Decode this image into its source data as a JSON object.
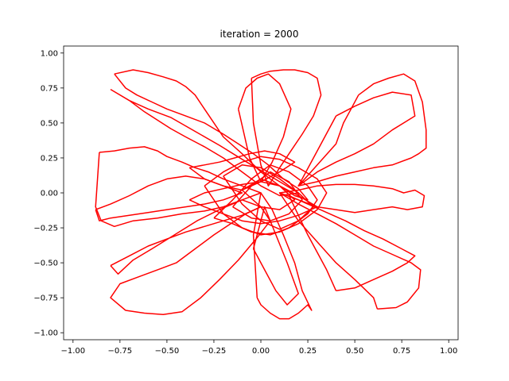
{
  "chart_data": {
    "type": "line",
    "title": "iteration = 2000",
    "xlabel": "",
    "ylabel": "",
    "xlim": [
      -1.05,
      1.05
    ],
    "ylim": [
      -1.05,
      1.05
    ],
    "xticks": [
      -1.0,
      -0.75,
      -0.5,
      -0.25,
      0.0,
      0.25,
      0.5,
      0.75,
      1.0
    ],
    "xtick_labels": [
      "−1.00",
      "−0.75",
      "−0.50",
      "−0.25",
      "0.00",
      "0.25",
      "0.50",
      "0.75",
      "1.00"
    ],
    "yticks": [
      1.0,
      0.75,
      0.5,
      0.25,
      0.0,
      -0.25,
      -0.5,
      -0.75,
      -1.0
    ],
    "ytick_labels": [
      "1.00",
      "0.75",
      "0.50",
      "0.25",
      "0.00",
      "−0.25",
      "−0.50",
      "−0.75",
      "−1.00"
    ],
    "grid": false,
    "legend": "none",
    "line_color": "#ff0000",
    "series": [
      {
        "x": [
          -0.78,
          -0.68,
          -0.6,
          -0.52,
          -0.45,
          -0.4,
          -0.35,
          -0.3,
          -0.25,
          -0.2,
          -0.1,
          0.0,
          0.1,
          0.18,
          0.25,
          0.2,
          0.12,
          0.04,
          -0.04,
          -0.12,
          -0.2,
          -0.3,
          -0.4,
          -0.5,
          -0.58,
          -0.66,
          -0.72,
          -0.78
        ],
        "y": [
          0.85,
          0.88,
          0.86,
          0.83,
          0.8,
          0.76,
          0.7,
          0.6,
          0.5,
          0.4,
          0.28,
          0.15,
          0.05,
          -0.02,
          -0.05,
          0.03,
          0.1,
          0.2,
          0.28,
          0.35,
          0.42,
          0.5,
          0.55,
          0.6,
          0.65,
          0.7,
          0.75,
          0.85
        ]
      },
      {
        "x": [
          -0.8,
          -0.7,
          -0.62,
          -0.55,
          -0.48,
          -0.4,
          -0.3,
          -0.2,
          -0.1,
          0.0,
          0.1,
          0.2,
          0.1,
          0.0,
          -0.1,
          -0.22,
          -0.35,
          -0.48,
          -0.6,
          -0.7,
          -0.8
        ],
        "y": [
          0.74,
          0.66,
          0.58,
          0.52,
          0.46,
          0.4,
          0.33,
          0.25,
          0.15,
          0.05,
          -0.02,
          0.0,
          0.08,
          0.16,
          0.24,
          0.34,
          0.44,
          0.54,
          0.6,
          0.66,
          0.74
        ]
      },
      {
        "x": [
          -0.86,
          -0.78,
          -0.7,
          -0.62,
          -0.55,
          -0.5,
          -0.42,
          -0.35,
          -0.28,
          -0.2,
          -0.1,
          0.0,
          -0.1,
          -0.2,
          -0.3,
          -0.42,
          -0.55,
          -0.68,
          -0.78,
          -0.85,
          -0.88,
          -0.86
        ],
        "y": [
          0.29,
          0.3,
          0.32,
          0.33,
          0.3,
          0.26,
          0.22,
          0.18,
          0.15,
          0.1,
          0.05,
          0.0,
          -0.05,
          -0.1,
          -0.13,
          -0.15,
          -0.18,
          -0.2,
          -0.24,
          -0.2,
          -0.1,
          0.29
        ]
      },
      {
        "x": [
          -0.88,
          -0.8,
          -0.7,
          -0.6,
          -0.5,
          -0.4,
          -0.3,
          -0.2,
          -0.1,
          -0.2,
          -0.3,
          -0.4,
          -0.5,
          -0.6,
          -0.7,
          -0.8,
          -0.86,
          -0.88
        ],
        "y": [
          -0.12,
          -0.08,
          -0.02,
          0.05,
          0.1,
          0.12,
          0.1,
          0.05,
          0.0,
          -0.05,
          -0.08,
          -0.1,
          -0.12,
          -0.14,
          -0.16,
          -0.18,
          -0.2,
          -0.12
        ]
      },
      {
        "x": [
          -0.72,
          -0.62,
          -0.52,
          -0.42,
          -0.32,
          -0.22,
          -0.12,
          -0.02,
          0.05,
          0.0,
          -0.08,
          -0.16,
          -0.25,
          -0.35,
          -0.45,
          -0.55,
          -0.65,
          -0.75,
          -0.8,
          -0.72
        ],
        "y": [
          -0.84,
          -0.86,
          -0.87,
          -0.85,
          -0.75,
          -0.62,
          -0.48,
          -0.32,
          -0.2,
          -0.1,
          -0.15,
          -0.22,
          -0.3,
          -0.4,
          -0.5,
          -0.55,
          -0.6,
          -0.65,
          -0.75,
          -0.84
        ]
      },
      {
        "x": [
          -0.8,
          -0.7,
          -0.6,
          -0.5,
          -0.4,
          -0.3,
          -0.2,
          -0.1,
          0.0,
          -0.1,
          -0.22,
          -0.34,
          -0.46,
          -0.58,
          -0.68,
          -0.76,
          -0.8
        ],
        "y": [
          -0.52,
          -0.45,
          -0.38,
          -0.33,
          -0.28,
          -0.24,
          -0.2,
          -0.16,
          -0.1,
          -0.05,
          -0.12,
          -0.2,
          -0.3,
          -0.4,
          -0.48,
          -0.58,
          -0.52
        ]
      },
      {
        "x": [
          -0.02,
          0.0,
          0.05,
          0.1,
          0.15,
          0.2,
          0.25,
          0.27,
          0.22,
          0.18,
          0.12,
          0.06,
          0.0,
          -0.04,
          -0.02
        ],
        "y": [
          -0.75,
          -0.8,
          -0.86,
          -0.9,
          -0.9,
          -0.86,
          -0.8,
          -0.84,
          -0.7,
          -0.5,
          -0.3,
          -0.12,
          0.0,
          -0.3,
          -0.75
        ]
      },
      {
        "x": [
          -0.04,
          0.02,
          0.08,
          0.14,
          0.2,
          0.14,
          0.08,
          0.02,
          -0.04
        ],
        "y": [
          -0.4,
          -0.55,
          -0.7,
          -0.8,
          -0.72,
          -0.5,
          -0.3,
          -0.1,
          -0.4
        ]
      },
      {
        "x": [
          0.62,
          0.72,
          0.78,
          0.84,
          0.85,
          0.8,
          0.7,
          0.6,
          0.5,
          0.4,
          0.3,
          0.2,
          0.1,
          0.2,
          0.3,
          0.4,
          0.5,
          0.6,
          0.62
        ],
        "y": [
          -0.83,
          -0.82,
          -0.78,
          -0.68,
          -0.55,
          -0.5,
          -0.44,
          -0.38,
          -0.3,
          -0.22,
          -0.15,
          -0.08,
          0.0,
          -0.2,
          -0.35,
          -0.5,
          -0.62,
          -0.75,
          -0.83
        ]
      },
      {
        "x": [
          0.4,
          0.5,
          0.6,
          0.7,
          0.78,
          0.82,
          0.75,
          0.65,
          0.55,
          0.45,
          0.35,
          0.25,
          0.15,
          0.25,
          0.35,
          0.4
        ],
        "y": [
          -0.7,
          -0.68,
          -0.62,
          -0.56,
          -0.5,
          -0.45,
          -0.4,
          -0.33,
          -0.27,
          -0.2,
          -0.14,
          -0.08,
          -0.02,
          -0.3,
          -0.55,
          -0.7
        ]
      },
      {
        "x": [
          0.4,
          0.5,
          0.6,
          0.7,
          0.78,
          0.86,
          0.87,
          0.82,
          0.76,
          0.7,
          0.6,
          0.5,
          0.4,
          0.3,
          0.2,
          0.1,
          0.2,
          0.3,
          0.4
        ],
        "y": [
          -0.12,
          -0.14,
          -0.12,
          -0.1,
          -0.12,
          -0.1,
          -0.02,
          0.02,
          0.0,
          0.03,
          0.05,
          0.06,
          0.06,
          0.05,
          0.02,
          0.0,
          -0.05,
          -0.1,
          -0.12
        ]
      },
      {
        "x": [
          0.52,
          0.6,
          0.68,
          0.76,
          0.82,
          0.86,
          0.88,
          0.88,
          0.84,
          0.8,
          0.7,
          0.6,
          0.5,
          0.4,
          0.3,
          0.2,
          0.3,
          0.4,
          0.44,
          0.48,
          0.52
        ],
        "y": [
          0.7,
          0.78,
          0.82,
          0.85,
          0.8,
          0.65,
          0.45,
          0.32,
          0.28,
          0.25,
          0.2,
          0.18,
          0.15,
          0.12,
          0.08,
          0.05,
          0.2,
          0.35,
          0.5,
          0.6,
          0.7
        ]
      },
      {
        "x": [
          0.4,
          0.5,
          0.6,
          0.7,
          0.8,
          0.82,
          0.7,
          0.6,
          0.5,
          0.4,
          0.3,
          0.2,
          0.3,
          0.4
        ],
        "y": [
          0.55,
          0.62,
          0.68,
          0.72,
          0.7,
          0.55,
          0.45,
          0.35,
          0.28,
          0.22,
          0.15,
          0.05,
          0.3,
          0.55
        ]
      },
      {
        "x": [
          -0.05,
          0.0,
          0.05,
          0.12,
          0.18,
          0.25,
          0.3,
          0.32,
          0.28,
          0.22,
          0.16,
          0.1,
          0.04,
          0.0,
          -0.04,
          -0.05
        ],
        "y": [
          0.82,
          0.85,
          0.87,
          0.88,
          0.88,
          0.86,
          0.82,
          0.7,
          0.55,
          0.42,
          0.3,
          0.18,
          0.05,
          0.2,
          0.5,
          0.82
        ]
      },
      {
        "x": [
          -0.12,
          -0.08,
          -0.02,
          0.04,
          0.1,
          0.16,
          0.12,
          0.06,
          0.0,
          -0.06,
          -0.12
        ],
        "y": [
          0.6,
          0.75,
          0.82,
          0.85,
          0.78,
          0.6,
          0.4,
          0.22,
          0.08,
          0.25,
          0.6
        ]
      },
      {
        "x": [
          -0.38,
          -0.3,
          -0.22,
          -0.14,
          -0.06,
          0.02,
          0.1,
          0.18,
          0.1,
          0.0,
          -0.1,
          -0.2,
          -0.3,
          -0.38
        ],
        "y": [
          0.18,
          0.2,
          0.22,
          0.25,
          0.28,
          0.3,
          0.28,
          0.22,
          0.15,
          0.08,
          0.02,
          0.05,
          0.1,
          0.18
        ]
      },
      {
        "x": [
          -0.38,
          -0.3,
          -0.2,
          -0.1,
          0.0,
          0.1,
          0.2,
          0.3,
          0.2,
          0.1,
          0.0,
          -0.1,
          -0.2,
          -0.3,
          -0.38
        ],
        "y": [
          -0.05,
          -0.1,
          -0.15,
          -0.2,
          -0.22,
          -0.2,
          -0.16,
          -0.1,
          -0.02,
          0.05,
          0.08,
          0.06,
          0.03,
          0.0,
          -0.05
        ]
      },
      {
        "x": [
          -0.3,
          -0.2,
          -0.1,
          0.0,
          0.1,
          0.2,
          0.3,
          0.35,
          0.3,
          0.2,
          0.1,
          0.0,
          -0.1,
          -0.2,
          -0.3
        ],
        "y": [
          0.05,
          0.15,
          0.22,
          0.26,
          0.24,
          0.18,
          0.1,
          0.0,
          -0.12,
          -0.22,
          -0.28,
          -0.3,
          -0.25,
          -0.15,
          0.05
        ]
      },
      {
        "x": [
          -0.25,
          -0.15,
          -0.05,
          0.05,
          0.15,
          0.25,
          0.3,
          0.25,
          0.15,
          0.05,
          -0.05,
          -0.15,
          -0.25
        ],
        "y": [
          -0.18,
          -0.05,
          0.1,
          0.2,
          0.15,
          0.05,
          -0.05,
          -0.15,
          -0.25,
          -0.3,
          -0.28,
          -0.22,
          -0.18
        ]
      },
      {
        "x": [
          -0.2,
          -0.1,
          0.0,
          0.1,
          0.2,
          0.28,
          0.2,
          0.1,
          0.0,
          -0.1,
          -0.2
        ],
        "y": [
          0.12,
          0.2,
          0.18,
          0.1,
          0.0,
          -0.1,
          -0.2,
          -0.26,
          -0.2,
          -0.08,
          0.12
        ]
      },
      {
        "x": [
          -0.15,
          -0.05,
          0.05,
          0.15,
          0.22,
          0.15,
          0.05,
          -0.05,
          -0.15
        ],
        "y": [
          -0.1,
          0.05,
          0.15,
          0.08,
          -0.05,
          -0.15,
          -0.2,
          -0.18,
          -0.1
        ]
      },
      {
        "x": [
          -0.1,
          0.0,
          0.1,
          0.18,
          0.1,
          0.0,
          -0.1
        ],
        "y": [
          0.02,
          0.1,
          0.05,
          -0.05,
          -0.12,
          -0.1,
          0.02
        ]
      }
    ]
  }
}
